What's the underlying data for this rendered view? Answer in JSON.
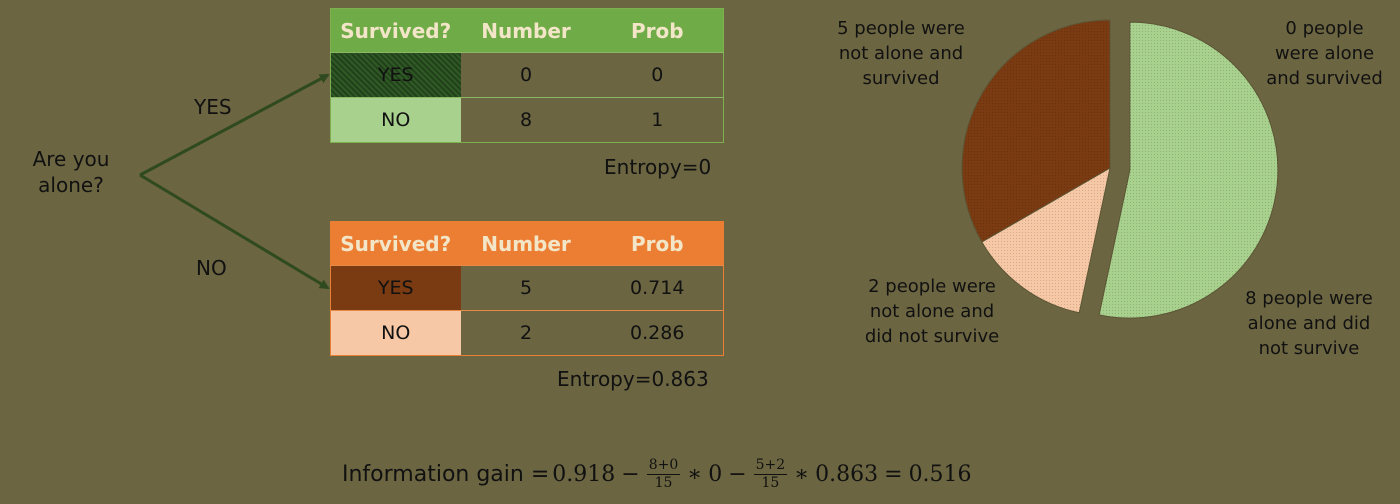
{
  "root": {
    "question": "Are you alone?",
    "yes_label": "YES",
    "no_label": "NO"
  },
  "yes_branch": {
    "headers": [
      "Survived?",
      "Number",
      "Prob"
    ],
    "rows": [
      {
        "survived": "YES",
        "number": "0",
        "prob": "0"
      },
      {
        "survived": "NO",
        "number": "8",
        "prob": "1"
      }
    ],
    "entropy": "Entropy=0",
    "colors": {
      "header": "#6fab47",
      "yes_cell": "#2f5a26",
      "no_cell": "#a9d18e"
    }
  },
  "no_branch": {
    "headers": [
      "Survived?",
      "Number",
      "Prob"
    ],
    "rows": [
      {
        "survived": "YES",
        "number": "5",
        "prob": "0.714"
      },
      {
        "survived": "NO",
        "number": "2",
        "prob": "0.286"
      }
    ],
    "entropy": "Entropy=0.863",
    "colors": {
      "header": "#ec7e33",
      "yes_cell": "#7b3b12",
      "no_cell": "#f7c8a6"
    }
  },
  "chart_data": {
    "type": "pie",
    "title": "",
    "slices": [
      {
        "label": "0 people were alone and survived",
        "value": 0,
        "color": "#2f5a26"
      },
      {
        "label": "8 people were alone and did not survive",
        "value": 8,
        "color": "#a9d18e",
        "exploded": true
      },
      {
        "label": "2 people were not alone and did not survive",
        "value": 2,
        "color": "#f7c8a6"
      },
      {
        "label": "5 people were not alone and survived",
        "value": 5,
        "color": "#7b3b12"
      }
    ],
    "labels_text": {
      "top_left": "5 people were not alone and survived",
      "top_right": "0 people were alone and survived",
      "bottom_left": "2 people were not alone and did not survive",
      "bottom_right": "8 people were alone and did not survive"
    }
  },
  "formula": {
    "prefix": "Information gain = ",
    "h_parent": "0.918",
    "frac1_num": "8+0",
    "frac1_den": "15",
    "h1": "0",
    "frac2_num": "5+2",
    "frac2_den": "15",
    "h2": "0.863",
    "result": "0.516"
  }
}
